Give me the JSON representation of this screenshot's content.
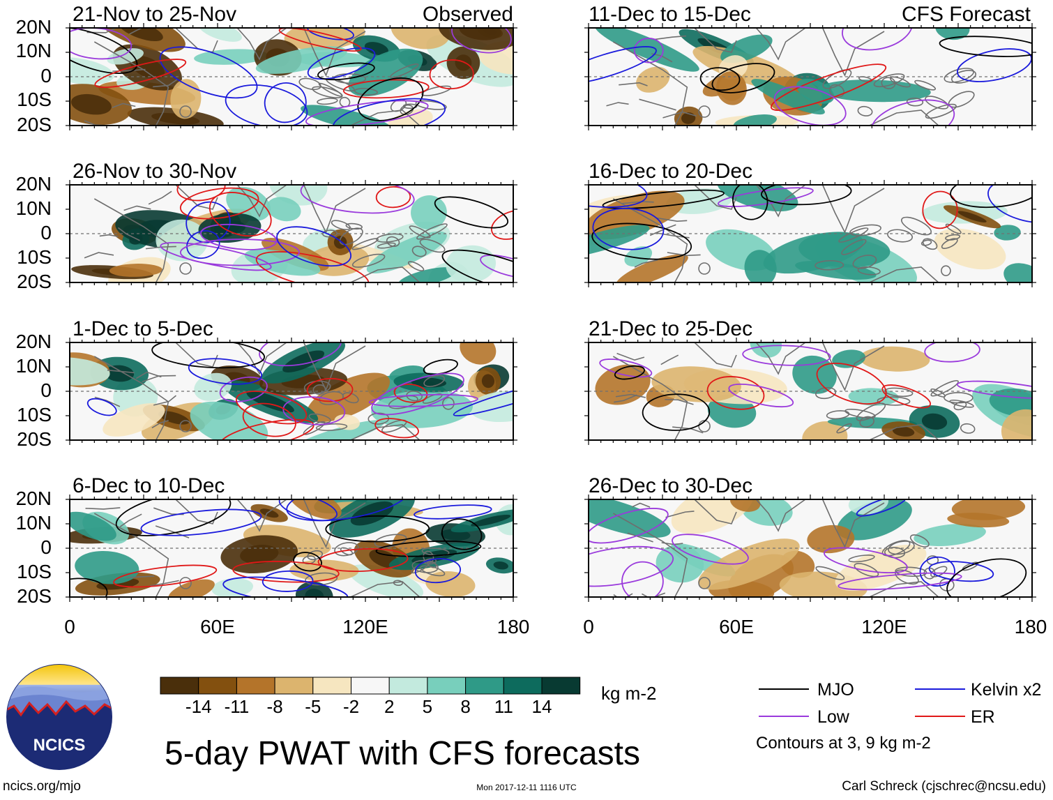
{
  "title": "5-day PWAT with CFS forecasts",
  "section_labels": {
    "observed": "Observed",
    "forecast": "CFS Forecast"
  },
  "panels": {
    "observed": [
      {
        "id": "obs-1",
        "period": "21-Nov to 25-Nov"
      },
      {
        "id": "obs-2",
        "period": "26-Nov to 30-Nov"
      },
      {
        "id": "obs-3",
        "period": "1-Dec to 5-Dec"
      },
      {
        "id": "obs-4",
        "period": "6-Dec to 10-Dec"
      }
    ],
    "forecast": [
      {
        "id": "fc-1",
        "period": "11-Dec to 15-Dec"
      },
      {
        "id": "fc-2",
        "period": "16-Dec to 20-Dec"
      },
      {
        "id": "fc-3",
        "period": "21-Dec to 25-Dec"
      },
      {
        "id": "fc-4",
        "period": "26-Dec to 30-Dec"
      }
    ]
  },
  "lat_labels": [
    "20N",
    "10N",
    "0",
    "10S",
    "20S"
  ],
  "lon_labels": [
    "0",
    "60E",
    "120E",
    "180"
  ],
  "colorbar": {
    "unit": "kg m-2",
    "tick_labels": [
      "-14",
      "-11",
      "-8",
      "-5",
      "-2",
      "2",
      "5",
      "8",
      "11",
      "14"
    ],
    "colors": [
      "#4a2f0b",
      "#83500f",
      "#b4742a",
      "#dcb46e",
      "#f6e6c0",
      "#f7f7f7",
      "#c3eade",
      "#78cfbc",
      "#2f9a87",
      "#0d6b5d",
      "#083a32"
    ]
  },
  "legend": {
    "items": [
      {
        "label": "MJO",
        "color": "#000000"
      },
      {
        "label": "Kelvin x2",
        "color": "#1a1adc"
      },
      {
        "label": "Low",
        "color": "#9a3adc"
      },
      {
        "label": "ER",
        "color": "#e01818"
      }
    ],
    "note": "Contours at 3, 9 kg m-2"
  },
  "logo": {
    "text": "NCICS"
  },
  "footer": {
    "url": "ncics.org/mjo",
    "timestamp": "Mon 2017-12-11 1116 UTC",
    "credit": "Carl Schreck (cjschrec@ncsu.edu)"
  }
}
